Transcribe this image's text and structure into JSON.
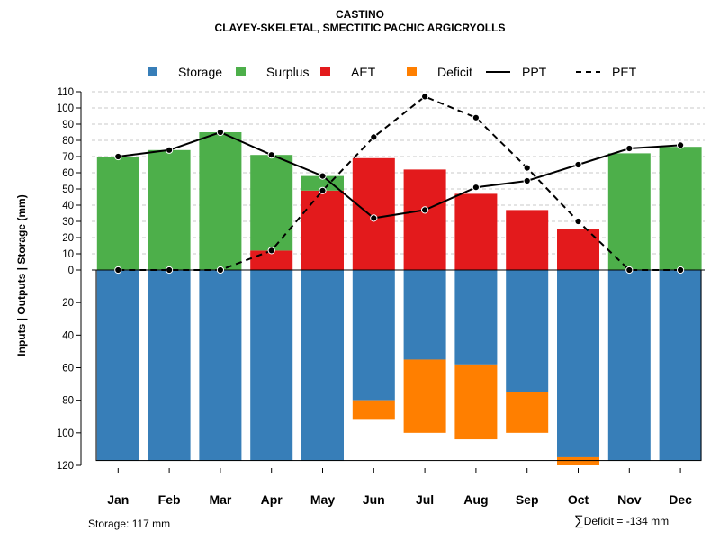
{
  "chart_data": {
    "type": "bar",
    "title": "CASTINO",
    "subtitle": "CLAYEY-SKELETAL, SMECTITIC PACHIC ARGICRYOLLS",
    "ylabel": "Inputs | Outputs | Storage    (mm)",
    "upper_ylim": [
      0,
      110
    ],
    "upper_ticks": [
      0,
      10,
      20,
      30,
      40,
      50,
      60,
      70,
      80,
      90,
      100,
      110
    ],
    "lower_ylim": [
      0,
      120
    ],
    "lower_ticks": [
      0,
      20,
      40,
      60,
      80,
      100,
      120
    ],
    "storage_capacity": 117,
    "categories": [
      "Jan",
      "Feb",
      "Mar",
      "Apr",
      "May",
      "Jun",
      "Jul",
      "Aug",
      "Sep",
      "Oct",
      "Nov",
      "Dec"
    ],
    "series": [
      {
        "name": "AET",
        "color": "#E31A1C",
        "values": [
          0,
          0,
          0,
          12,
          49,
          69,
          62,
          47,
          37,
          25,
          0,
          0
        ]
      },
      {
        "name": "Surplus",
        "color": "#4DAF4A",
        "values": [
          70,
          74,
          85,
          59,
          9,
          0,
          0,
          0,
          0,
          0,
          72,
          76
        ]
      },
      {
        "name": "Storage",
        "color": "#377EB8",
        "values": [
          117,
          117,
          117,
          117,
          117,
          80,
          55,
          58,
          75,
          115,
          117,
          117
        ]
      },
      {
        "name": "Deficit",
        "color": "#FF7F00",
        "values": [
          0,
          0,
          0,
          0,
          0,
          12,
          45,
          46,
          25,
          5,
          0,
          0
        ]
      },
      {
        "name": "PPT",
        "color": "#000000",
        "values": [
          70,
          74,
          85,
          71,
          58,
          32,
          37,
          51,
          55,
          65,
          75,
          77
        ]
      },
      {
        "name": "PET",
        "color": "#000000",
        "values": [
          0,
          0,
          0,
          12,
          49,
          82,
          107,
          94,
          63,
          30,
          0,
          0
        ]
      }
    ],
    "legend": [
      {
        "label": "Storage",
        "color": "#377EB8",
        "kind": "box"
      },
      {
        "label": "Surplus",
        "color": "#4DAF4A",
        "kind": "box"
      },
      {
        "label": "AET",
        "color": "#E31A1C",
        "kind": "box"
      },
      {
        "label": "Deficit",
        "color": "#FF7F00",
        "kind": "box"
      },
      {
        "label": "PPT",
        "color": "#000000",
        "kind": "solid"
      },
      {
        "label": "PET",
        "color": "#000000",
        "kind": "dashed"
      }
    ],
    "legend_position": "top"
  },
  "footer": {
    "storage_note": "Storage: 117 mm",
    "deficit_sigma": "∑",
    "deficit_note": "Deficit = -134 mm"
  }
}
